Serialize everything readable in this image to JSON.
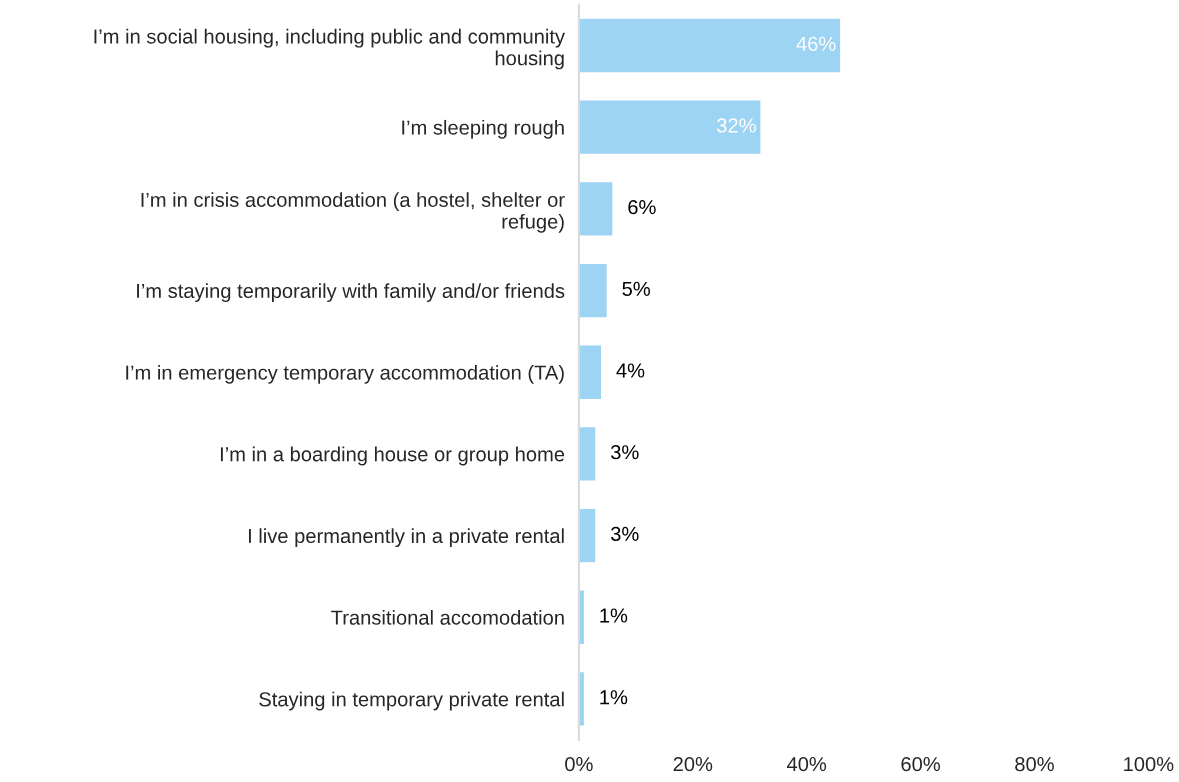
{
  "chart_data": {
    "type": "bar",
    "orientation": "horizontal",
    "categories": [
      "I’m in social housing, including public and community\nhousing",
      "I’m sleeping rough",
      "I’m in crisis accommodation (a hostel, shelter or\nrefuge)",
      "I’m staying temporarily with family and/or friends",
      "I’m in emergency temporary accommodation (TA)",
      "I’m in a boarding house or group home",
      "I live permanently in a private rental",
      "Transitional accomodation",
      "Staying in temporary private rental"
    ],
    "values": [
      46,
      32,
      6,
      5,
      4,
      3,
      3,
      1,
      1
    ],
    "value_labels": [
      "46%",
      "32%",
      "6%",
      "5%",
      "4%",
      "3%",
      "3%",
      "1%",
      "1%"
    ],
    "color": "#9dd3f3",
    "xlim": [
      0,
      100
    ],
    "xticks": [
      {
        "value": 0,
        "label": "0%"
      },
      {
        "value": 20,
        "label": "20%"
      },
      {
        "value": 40,
        "label": "40%"
      },
      {
        "value": 60,
        "label": "60%"
      },
      {
        "value": 80,
        "label": "80%"
      },
      {
        "value": 100,
        "label": "100%"
      }
    ],
    "grid": false,
    "legend": false
  }
}
